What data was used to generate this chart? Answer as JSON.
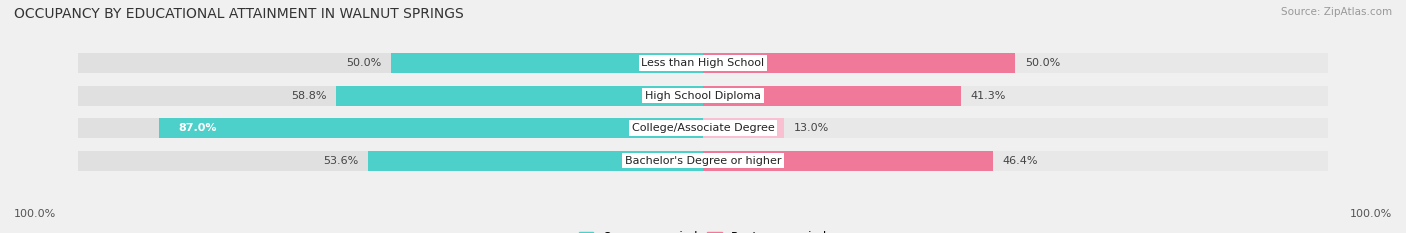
{
  "title": "OCCUPANCY BY EDUCATIONAL ATTAINMENT IN WALNUT SPRINGS",
  "source": "Source: ZipAtlas.com",
  "categories": [
    "Less than High School",
    "High School Diploma",
    "College/Associate Degree",
    "Bachelor's Degree or higher"
  ],
  "owner_values": [
    50.0,
    58.8,
    87.0,
    53.6
  ],
  "renter_values": [
    50.0,
    41.3,
    13.0,
    46.4
  ],
  "owner_color": "#4DCFCA",
  "renter_color": "#F07898",
  "renter_color_light": "#F8C0D0",
  "background_color": "#f0f0f0",
  "bar_background_left": "#e0e0e0",
  "bar_background_right": "#e8e8e8",
  "title_fontsize": 10,
  "label_fontsize": 8,
  "value_fontsize": 8,
  "legend_fontsize": 8.5,
  "source_fontsize": 7.5
}
